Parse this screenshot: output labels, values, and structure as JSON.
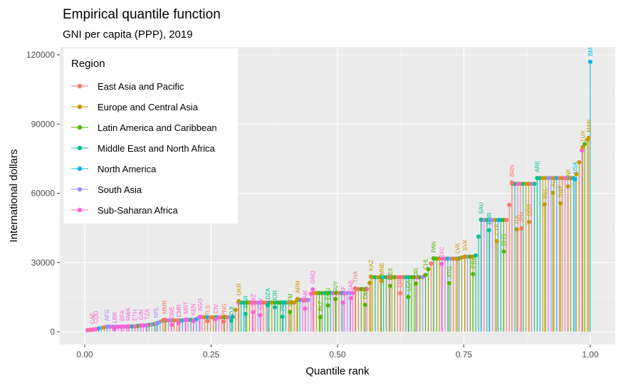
{
  "chart_data": {
    "type": "scatter",
    "title": "Empirical quantile function",
    "subtitle": "GNI per capita (PPP), 2019",
    "xlabel": "Quantile rank",
    "ylabel": "International dollars",
    "xlim": [
      0,
      1
    ],
    "ylim": [
      0,
      120000
    ],
    "x_ticks": [
      "0.00",
      "0.25",
      "0.50",
      "0.75",
      "1.00"
    ],
    "y_ticks": [
      "0",
      "30000",
      "60000",
      "90000",
      "120000"
    ],
    "grid": true,
    "legend": {
      "title": "Region",
      "placement": "top-left",
      "entries": [
        {
          "name": "East Asia and Pacific",
          "color": "#F8766D"
        },
        {
          "name": "Europe and Central Asia",
          "color": "#C49A00"
        },
        {
          "name": "Latin America and Caribbean",
          "color": "#53B400"
        },
        {
          "name": "Middle East and North Africa",
          "color": "#00C094"
        },
        {
          "name": "North America",
          "color": "#00B6EB"
        },
        {
          "name": "South Asia",
          "color": "#A58AFF"
        },
        {
          "name": "Sub-Saharan Africa",
          "color": "#FB61D7"
        }
      ]
    },
    "labeled_points": [
      {
        "label": "CAF",
        "x": 0.015,
        "y": 900,
        "region": 6
      },
      {
        "label": "COD",
        "x": 0.022,
        "y": 1100,
        "region": 6
      },
      {
        "label": "AFG",
        "x": 0.044,
        "y": 2200,
        "region": 5
      },
      {
        "label": "LBR",
        "x": 0.059,
        "y": 1300,
        "region": 6
      },
      {
        "label": "BFA",
        "x": 0.074,
        "y": 2200,
        "region": 6
      },
      {
        "label": "RWA",
        "x": 0.086,
        "y": 2300,
        "region": 6
      },
      {
        "label": "ETH",
        "x": 0.099,
        "y": 2300,
        "region": 6
      },
      {
        "label": "GIN",
        "x": 0.111,
        "y": 2700,
        "region": 6
      },
      {
        "label": "TZA",
        "x": 0.123,
        "y": 2800,
        "region": 6
      },
      {
        "label": "NPL",
        "x": 0.141,
        "y": 3500,
        "region": 5
      },
      {
        "label": "MMR",
        "x": 0.158,
        "y": 5300,
        "region": 0
      },
      {
        "label": "ZWE",
        "x": 0.172,
        "y": 3000,
        "region": 6
      },
      {
        "label": "CMR",
        "x": 0.186,
        "y": 3800,
        "region": 6
      },
      {
        "label": "MRT",
        "x": 0.2,
        "y": 5300,
        "region": 6
      },
      {
        "label": "KEN",
        "x": 0.215,
        "y": 4600,
        "region": 6
      },
      {
        "label": "AGO",
        "x": 0.228,
        "y": 6500,
        "region": 6
      },
      {
        "label": "TLS",
        "x": 0.243,
        "y": 4600,
        "region": 0
      },
      {
        "label": "CIV",
        "x": 0.259,
        "y": 5400,
        "region": 6
      },
      {
        "label": "PNG",
        "x": 0.275,
        "y": 4400,
        "region": 0
      },
      {
        "label": "DJI",
        "x": 0.29,
        "y": 4800,
        "region": 3
      },
      {
        "label": "UKR",
        "x": 0.305,
        "y": 13300,
        "region": 1
      },
      {
        "label": "MAR",
        "x": 0.318,
        "y": 7700,
        "region": 3
      },
      {
        "label": "SWZ",
        "x": 0.333,
        "y": 8500,
        "region": 6
      },
      {
        "label": "CPV",
        "x": 0.347,
        "y": 7200,
        "region": 6
      },
      {
        "label": "DZA",
        "x": 0.362,
        "y": 11500,
        "region": 3
      },
      {
        "label": "JOR",
        "x": 0.376,
        "y": 10600,
        "region": 3
      },
      {
        "label": "PSE",
        "x": 0.391,
        "y": 6500,
        "region": 3
      },
      {
        "label": "GTM",
        "x": 0.406,
        "y": 8600,
        "region": 2
      },
      {
        "label": "ARM",
        "x": 0.421,
        "y": 14200,
        "region": 1
      },
      {
        "label": "NAM",
        "x": 0.436,
        "y": 10000,
        "region": 6
      },
      {
        "label": "GNQ",
        "x": 0.451,
        "y": 18400,
        "region": 6
      },
      {
        "label": "BLZ",
        "x": 0.466,
        "y": 6400,
        "region": 2
      },
      {
        "label": "ECU",
        "x": 0.481,
        "y": 11400,
        "region": 2
      },
      {
        "label": "GUY",
        "x": 0.496,
        "y": 14200,
        "region": 2
      },
      {
        "label": "ZAF",
        "x": 0.511,
        "y": 12700,
        "region": 6
      },
      {
        "label": "GAB",
        "x": 0.526,
        "y": 14600,
        "region": 6
      },
      {
        "label": "THA",
        "x": 0.535,
        "y": 18800,
        "region": 0
      },
      {
        "label": "DMA",
        "x": 0.555,
        "y": 11700,
        "region": 2
      },
      {
        "label": "KAZ",
        "x": 0.566,
        "y": 23900,
        "region": 1
      },
      {
        "label": "MNE",
        "x": 0.587,
        "y": 22000,
        "region": 1
      },
      {
        "label": "MEX",
        "x": 0.604,
        "y": 19900,
        "region": 2
      },
      {
        "label": "CHN",
        "x": 0.624,
        "y": 16700,
        "region": 0
      },
      {
        "label": "LCA",
        "x": 0.64,
        "y": 15100,
        "region": 2
      },
      {
        "label": "CRI",
        "x": 0.655,
        "y": 20900,
        "region": 2
      },
      {
        "label": "CHL",
        "x": 0.674,
        "y": 24600,
        "region": 2
      },
      {
        "label": "PAN",
        "x": 0.69,
        "y": 31800,
        "region": 2
      },
      {
        "label": "SYC",
        "x": 0.706,
        "y": 29400,
        "region": 6
      },
      {
        "label": "ATG",
        "x": 0.721,
        "y": 21000,
        "region": 2
      },
      {
        "label": "LVA",
        "x": 0.737,
        "y": 31500,
        "region": 1
      },
      {
        "label": "SVK",
        "x": 0.752,
        "y": 32600,
        "region": 1
      },
      {
        "label": "PRI",
        "x": 0.768,
        "y": 25000,
        "region": 2
      },
      {
        "label": "SAU",
        "x": 0.784,
        "y": 48600,
        "region": 3
      },
      {
        "label": "BHR",
        "x": 0.8,
        "y": 44000,
        "region": 3
      },
      {
        "label": "CYP",
        "x": 0.815,
        "y": 39300,
        "region": 1
      },
      {
        "label": "BHS",
        "x": 0.829,
        "y": 34800,
        "region": 2
      },
      {
        "label": "BRN",
        "x": 0.845,
        "y": 64700,
        "region": 0
      },
      {
        "label": "ITA",
        "x": 0.855,
        "y": 44400,
        "region": 1
      },
      {
        "label": "JPN",
        "x": 0.864,
        "y": 44800,
        "region": 0
      },
      {
        "label": "GBR",
        "x": 0.879,
        "y": 47600,
        "region": 1
      },
      {
        "label": "ARE",
        "x": 0.895,
        "y": 66600,
        "region": 3
      },
      {
        "label": "BEL",
        "x": 0.91,
        "y": 55200,
        "region": 1
      },
      {
        "label": "AUT",
        "x": 0.926,
        "y": 60200,
        "region": 1
      },
      {
        "label": "SWE",
        "x": 0.941,
        "y": 55700,
        "region": 1
      },
      {
        "label": "DNK",
        "x": 0.956,
        "y": 63000,
        "region": 1
      },
      {
        "label": "USA",
        "x": 0.97,
        "y": 66100,
        "region": 4
      },
      {
        "label": "LUX",
        "x": 0.985,
        "y": 80000,
        "region": 1
      },
      {
        "label": "MAN",
        "x": 0.997,
        "y": 84000,
        "region": 1
      },
      {
        "label": "BM",
        "x": 1.0,
        "y": 117000,
        "region": 4
      }
    ]
  }
}
